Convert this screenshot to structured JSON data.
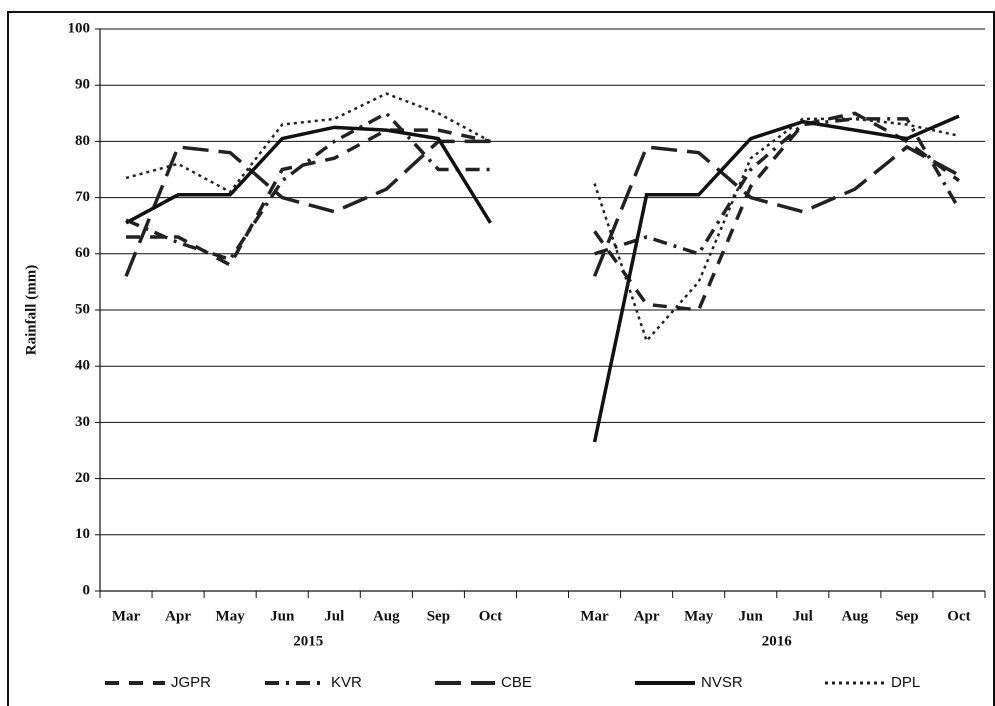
{
  "chart_data": {
    "type": "line",
    "y_label": "Rainfall (mm)",
    "categories": [
      "Mar",
      "Apr",
      "May",
      "Jun",
      "Jul",
      "Aug",
      "Sep",
      "Oct",
      null,
      "Mar",
      "Apr",
      "May",
      "Jun",
      "Jul",
      "Aug",
      "Sep",
      "Oct"
    ],
    "x_groups": [
      "2015",
      "2016"
    ],
    "ylim": [
      0,
      100
    ],
    "yticks": [
      0,
      10,
      20,
      30,
      40,
      50,
      60,
      70,
      80,
      90,
      100
    ],
    "grid": true,
    "series": [
      {
        "name": "JGPR",
        "color": "#222222",
        "style": "dashed",
        "values": [
          63,
          63,
          58,
          75,
          77,
          82,
          82,
          80,
          null,
          64,
          51,
          50,
          72,
          83,
          85,
          80,
          73
        ]
      },
      {
        "name": "KVR",
        "color": "#222222",
        "style": "dashdot",
        "values": [
          66,
          62,
          59,
          73,
          80,
          85,
          75,
          75,
          null,
          60,
          63,
          60,
          75,
          83,
          84,
          84,
          68
        ]
      },
      {
        "name": "CBE",
        "color": "#222222",
        "style": "longdash",
        "values": [
          56,
          79,
          78,
          70,
          67.5,
          71.5,
          80,
          80,
          null,
          56,
          79,
          78,
          70,
          67.5,
          71.5,
          79,
          74
        ]
      },
      {
        "name": "NVSR",
        "color": "#111111",
        "style": "solid",
        "values": [
          65.5,
          70.5,
          70.5,
          80.5,
          82.5,
          82,
          80.5,
          65.5,
          null,
          26.5,
          70.5,
          70.5,
          80.5,
          83.5,
          82,
          80.5,
          84.5
        ]
      },
      {
        "name": "DPL",
        "color": "#222222",
        "style": "dotted",
        "values": [
          73.5,
          76,
          71,
          83,
          84,
          88.5,
          85,
          80,
          null,
          72.5,
          44.5,
          55,
          77,
          84,
          84,
          83,
          81
        ]
      }
    ],
    "legend": "bottom"
  }
}
